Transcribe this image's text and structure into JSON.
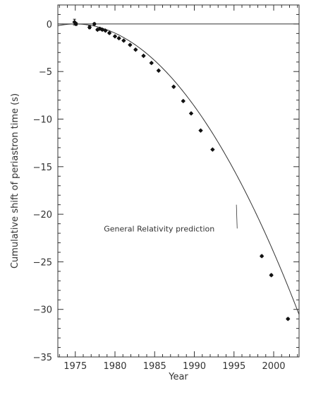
{
  "chart_data": {
    "type": "scatter",
    "title": "",
    "xlabel": "Year",
    "ylabel": "Cumulative shift of periastron time (s)",
    "xlim": [
      1972.8,
      2003.2
    ],
    "ylim": [
      -35,
      2
    ],
    "x_ticks": [
      1975,
      1980,
      1985,
      1990,
      1995,
      2000
    ],
    "x_tick_labels": [
      "1975",
      "1980",
      "1985",
      "1990",
      "1995",
      "2000"
    ],
    "y_ticks": [
      0,
      -5,
      -10,
      -15,
      -20,
      -25,
      -30,
      -35
    ],
    "y_tick_labels": [
      "0",
      "−5",
      "−10",
      "−15",
      "−20",
      "−25",
      "−30",
      "−35"
    ],
    "grid": false,
    "legend": "none",
    "reference_line_y": 0,
    "curve": {
      "name": "General Relativity prediction",
      "reference_year": 1975,
      "coefficient": -0.0384,
      "x_end": 2003.2
    },
    "annotation": {
      "text": "General Relativity prediction",
      "text_at": [
        1978.6,
        -21.5
      ],
      "points_to": [
        1995.3,
        -19.0
      ]
    },
    "series": [
      {
        "name": "",
        "marker": "diamond",
        "color": "#111111",
        "points": [
          {
            "x": 1974.9,
            "y": 0.2,
            "err": 0.3
          },
          {
            "x": 1975.1,
            "y": 0.0,
            "err": 0.15
          },
          {
            "x": 1976.8,
            "y": -0.35,
            "err": 0.15
          },
          {
            "x": 1977.4,
            "y": 0.0,
            "err": 0.12
          },
          {
            "x": 1977.8,
            "y": -0.6,
            "err": 0.1
          },
          {
            "x": 1978.1,
            "y": -0.5,
            "err": 0.1
          },
          {
            "x": 1978.4,
            "y": -0.6,
            "err": 0.1
          },
          {
            "x": 1978.8,
            "y": -0.7,
            "err": 0.1
          },
          {
            "x": 1979.3,
            "y": -0.95,
            "err": 0.1
          },
          {
            "x": 1980.0,
            "y": -1.3,
            "err": 0.08
          },
          {
            "x": 1980.5,
            "y": -1.5,
            "err": 0.08
          },
          {
            "x": 1981.1,
            "y": -1.75,
            "err": 0.08
          },
          {
            "x": 1981.9,
            "y": -2.2,
            "err": 0.08
          },
          {
            "x": 1982.6,
            "y": -2.7,
            "err": 0.08
          },
          {
            "x": 1983.6,
            "y": -3.35,
            "err": 0.08
          },
          {
            "x": 1984.6,
            "y": -4.1,
            "err": 0.08
          },
          {
            "x": 1985.5,
            "y": -4.9,
            "err": 0.08
          },
          {
            "x": 1987.4,
            "y": -6.6,
            "err": 0.08
          },
          {
            "x": 1988.6,
            "y": -8.1,
            "err": 0.08
          },
          {
            "x": 1989.6,
            "y": -9.4,
            "err": 0.08
          },
          {
            "x": 1990.8,
            "y": -11.2,
            "err": 0.08
          },
          {
            "x": 1992.3,
            "y": -13.2,
            "err": 0.08
          },
          {
            "x": 1998.5,
            "y": -24.4,
            "err": 0.1
          },
          {
            "x": 1999.7,
            "y": -26.4,
            "err": 0.1
          },
          {
            "x": 2001.8,
            "y": -31.0,
            "err": 0.1
          }
        ]
      }
    ]
  }
}
